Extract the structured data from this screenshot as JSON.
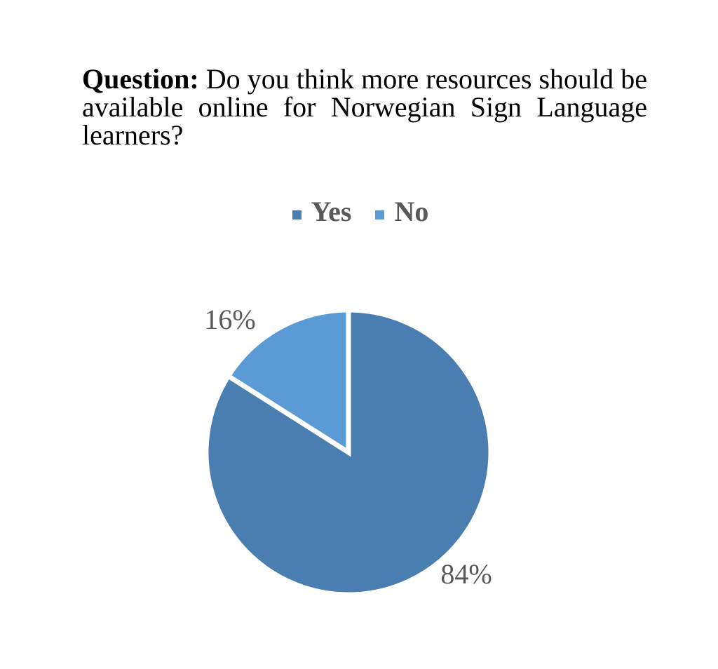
{
  "question": {
    "prefix": "Question:",
    "text": "Do you think more resources should be available online for Norwegian Sign Language learners?"
  },
  "chart_data": {
    "type": "pie",
    "title": "",
    "categories": [
      "Yes",
      "No"
    ],
    "values": [
      84,
      16
    ],
    "labels": [
      "84%",
      "16%"
    ],
    "colors": [
      "#4a7eb0",
      "#5b9bd5"
    ],
    "legend": "top"
  }
}
